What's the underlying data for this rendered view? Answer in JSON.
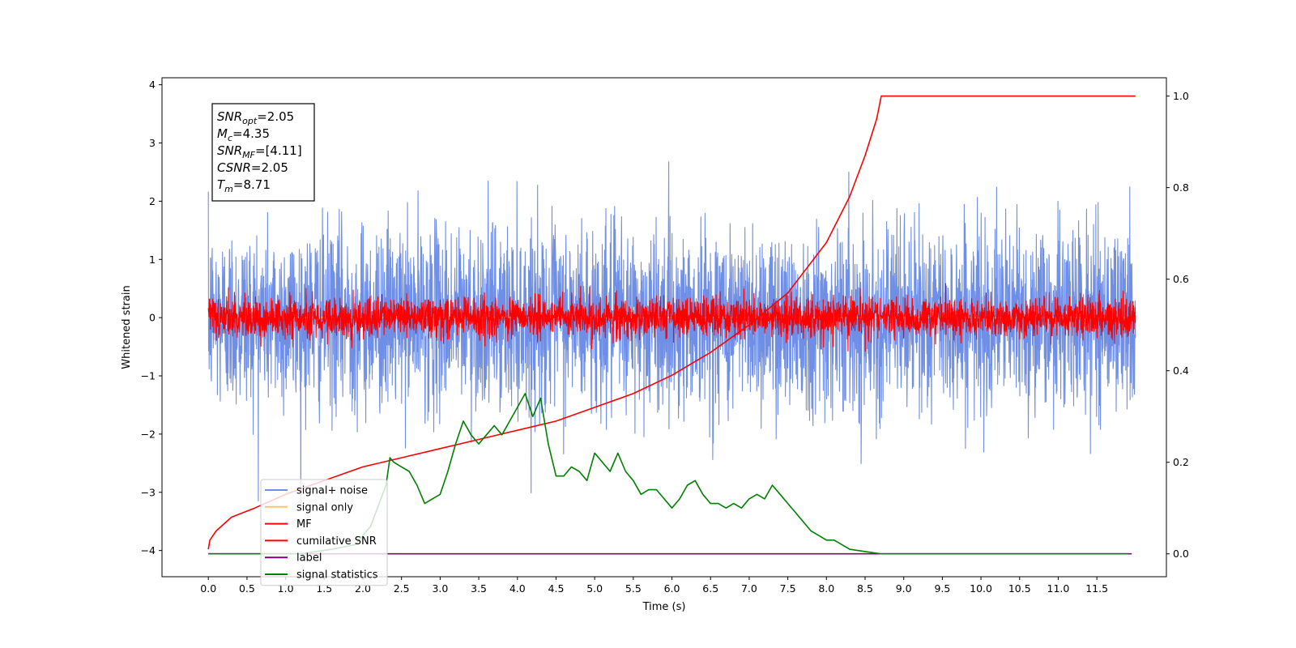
{
  "chart_data": {
    "type": "line",
    "xlabel": "Time (s)",
    "ylabel": "Whitened strain",
    "x_range": [
      -0.6,
      12.4
    ],
    "y_range": [
      -4.45,
      4.12
    ],
    "y2_range": [
      -0.05,
      1.04
    ],
    "x_ticks": [
      0.0,
      0.5,
      1.0,
      1.5,
      2.0,
      2.5,
      3.0,
      3.5,
      4.0,
      4.5,
      5.0,
      5.5,
      6.0,
      6.5,
      7.0,
      7.5,
      8.0,
      8.5,
      9.0,
      9.5,
      10.0,
      10.5,
      11.0,
      11.5
    ],
    "x_tick_labels": [
      "0.0",
      "0.5",
      "1.0",
      "1.5",
      "2.0",
      "2.5",
      "3.0",
      "3.5",
      "4.0",
      "4.5",
      "5.0",
      "5.5",
      "6.0",
      "6.5",
      "7.0",
      "7.5",
      "8.0",
      "8.5",
      "9.0",
      "9.5",
      "10.0",
      "10.5",
      "11.0",
      "11.5"
    ],
    "y_ticks": [
      4,
      3,
      2,
      1,
      0,
      -1,
      -2,
      -3,
      -4
    ],
    "y_tick_labels": [
      "4",
      "3",
      "2",
      "1",
      "0",
      "−1",
      "−2",
      "−3",
      "−4"
    ],
    "y2_ticks": [
      1.0,
      0.8,
      0.6,
      0.4,
      0.2,
      0.0
    ],
    "y2_tick_labels": [
      "1.0",
      "0.8",
      "0.6",
      "0.4",
      "0.2",
      "0.0"
    ],
    "grid": false,
    "legend_position": "lower-left",
    "series": [
      {
        "name": "signal+ noise",
        "color": "#6f8ee6",
        "axis": "left",
        "kind": "noise",
        "spread": 0.78,
        "duration": 12.0
      },
      {
        "name": "signal only",
        "color": "#ffc36b",
        "axis": "left",
        "kind": "flat",
        "x": [
          0,
          12
        ],
        "y": [
          0,
          0
        ]
      },
      {
        "name": "MF",
        "color": "#ff0000",
        "axis": "left",
        "kind": "noise",
        "spread": 0.17,
        "duration": 12.0
      },
      {
        "name": "cumilative SNR",
        "color": "#ff0000",
        "axis": "right",
        "x": [
          0.0,
          0.02,
          0.1,
          0.3,
          0.6,
          1.0,
          1.5,
          2.0,
          2.5,
          3.0,
          3.5,
          4.0,
          4.5,
          5.0,
          5.5,
          6.0,
          6.5,
          7.0,
          7.5,
          8.0,
          8.3,
          8.5,
          8.65,
          8.71,
          12.0
        ],
        "y": [
          0.01,
          0.03,
          0.05,
          0.08,
          0.1,
          0.13,
          0.16,
          0.19,
          0.21,
          0.23,
          0.25,
          0.27,
          0.29,
          0.32,
          0.35,
          0.39,
          0.44,
          0.5,
          0.57,
          0.68,
          0.78,
          0.87,
          0.95,
          1.0,
          1.0
        ]
      },
      {
        "name": "label",
        "color": "#800080",
        "axis": "right",
        "x": [
          0,
          11.95
        ],
        "y": [
          0.0,
          0.0
        ]
      },
      {
        "name": "signal statistics",
        "color": "#008000",
        "axis": "right",
        "x": [
          0.0,
          0.4,
          0.8,
          1.2,
          1.6,
          1.9,
          2.1,
          2.3,
          2.35,
          2.4,
          2.5,
          2.6,
          2.7,
          2.8,
          2.9,
          3.0,
          3.1,
          3.2,
          3.3,
          3.4,
          3.5,
          3.6,
          3.7,
          3.8,
          3.9,
          4.0,
          4.1,
          4.2,
          4.3,
          4.4,
          4.5,
          4.6,
          4.7,
          4.8,
          4.9,
          5.0,
          5.1,
          5.2,
          5.3,
          5.4,
          5.5,
          5.6,
          5.7,
          5.8,
          5.9,
          6.0,
          6.1,
          6.2,
          6.3,
          6.4,
          6.5,
          6.6,
          6.7,
          6.8,
          6.9,
          7.0,
          7.1,
          7.2,
          7.3,
          7.4,
          7.5,
          7.6,
          7.7,
          7.8,
          7.9,
          8.0,
          8.1,
          8.2,
          8.3,
          8.5,
          8.7,
          9.0,
          9.5,
          10.0,
          11.0,
          11.9
        ],
        "y": [
          0.0,
          0.0,
          0.0,
          0.0,
          0.01,
          0.02,
          0.06,
          0.15,
          0.21,
          0.2,
          0.19,
          0.18,
          0.15,
          0.11,
          0.12,
          0.13,
          0.18,
          0.24,
          0.29,
          0.26,
          0.24,
          0.26,
          0.28,
          0.26,
          0.29,
          0.32,
          0.35,
          0.3,
          0.34,
          0.24,
          0.17,
          0.17,
          0.19,
          0.18,
          0.16,
          0.22,
          0.2,
          0.18,
          0.22,
          0.18,
          0.16,
          0.13,
          0.14,
          0.14,
          0.12,
          0.1,
          0.12,
          0.15,
          0.16,
          0.13,
          0.11,
          0.11,
          0.1,
          0.11,
          0.1,
          0.12,
          0.13,
          0.12,
          0.15,
          0.13,
          0.11,
          0.09,
          0.07,
          0.05,
          0.04,
          0.03,
          0.03,
          0.02,
          0.01,
          0.005,
          0.0,
          0.0,
          0.0,
          0.0,
          0.0,
          0.0
        ]
      }
    ],
    "annotation": [
      {
        "name": "SNR",
        "sub": "opt",
        "value": "=2.05"
      },
      {
        "name": "M",
        "sub": "c",
        "value": "=4.35"
      },
      {
        "name": "SNR",
        "sub": "MF",
        "value": "=[4.11]"
      },
      {
        "name": "CSNR",
        "sub": "",
        "value": "=2.05"
      },
      {
        "name": "T",
        "sub": "m",
        "value": "=8.71"
      }
    ]
  }
}
